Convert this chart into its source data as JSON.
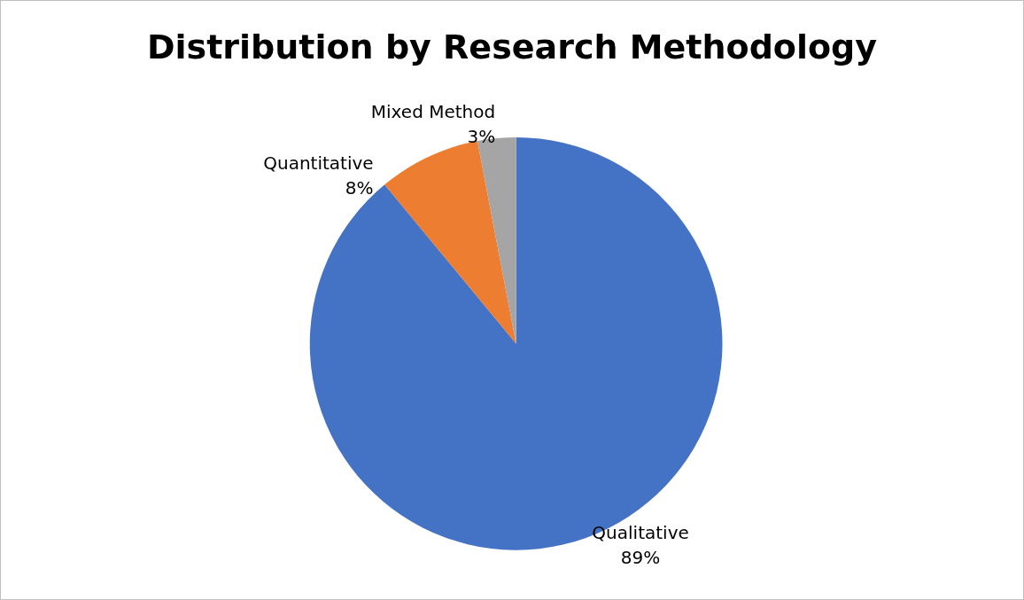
{
  "chart_data": {
    "type": "pie",
    "title": "Distribution by Research Methodology",
    "categories": [
      "Qualitative",
      "Quantitative",
      "Mixed Method"
    ],
    "values": [
      89,
      8,
      3
    ],
    "colors": [
      "#4472c4",
      "#ed7d31",
      "#a5a5a5"
    ],
    "value_labels": [
      "89%",
      "8%",
      "3%"
    ]
  }
}
